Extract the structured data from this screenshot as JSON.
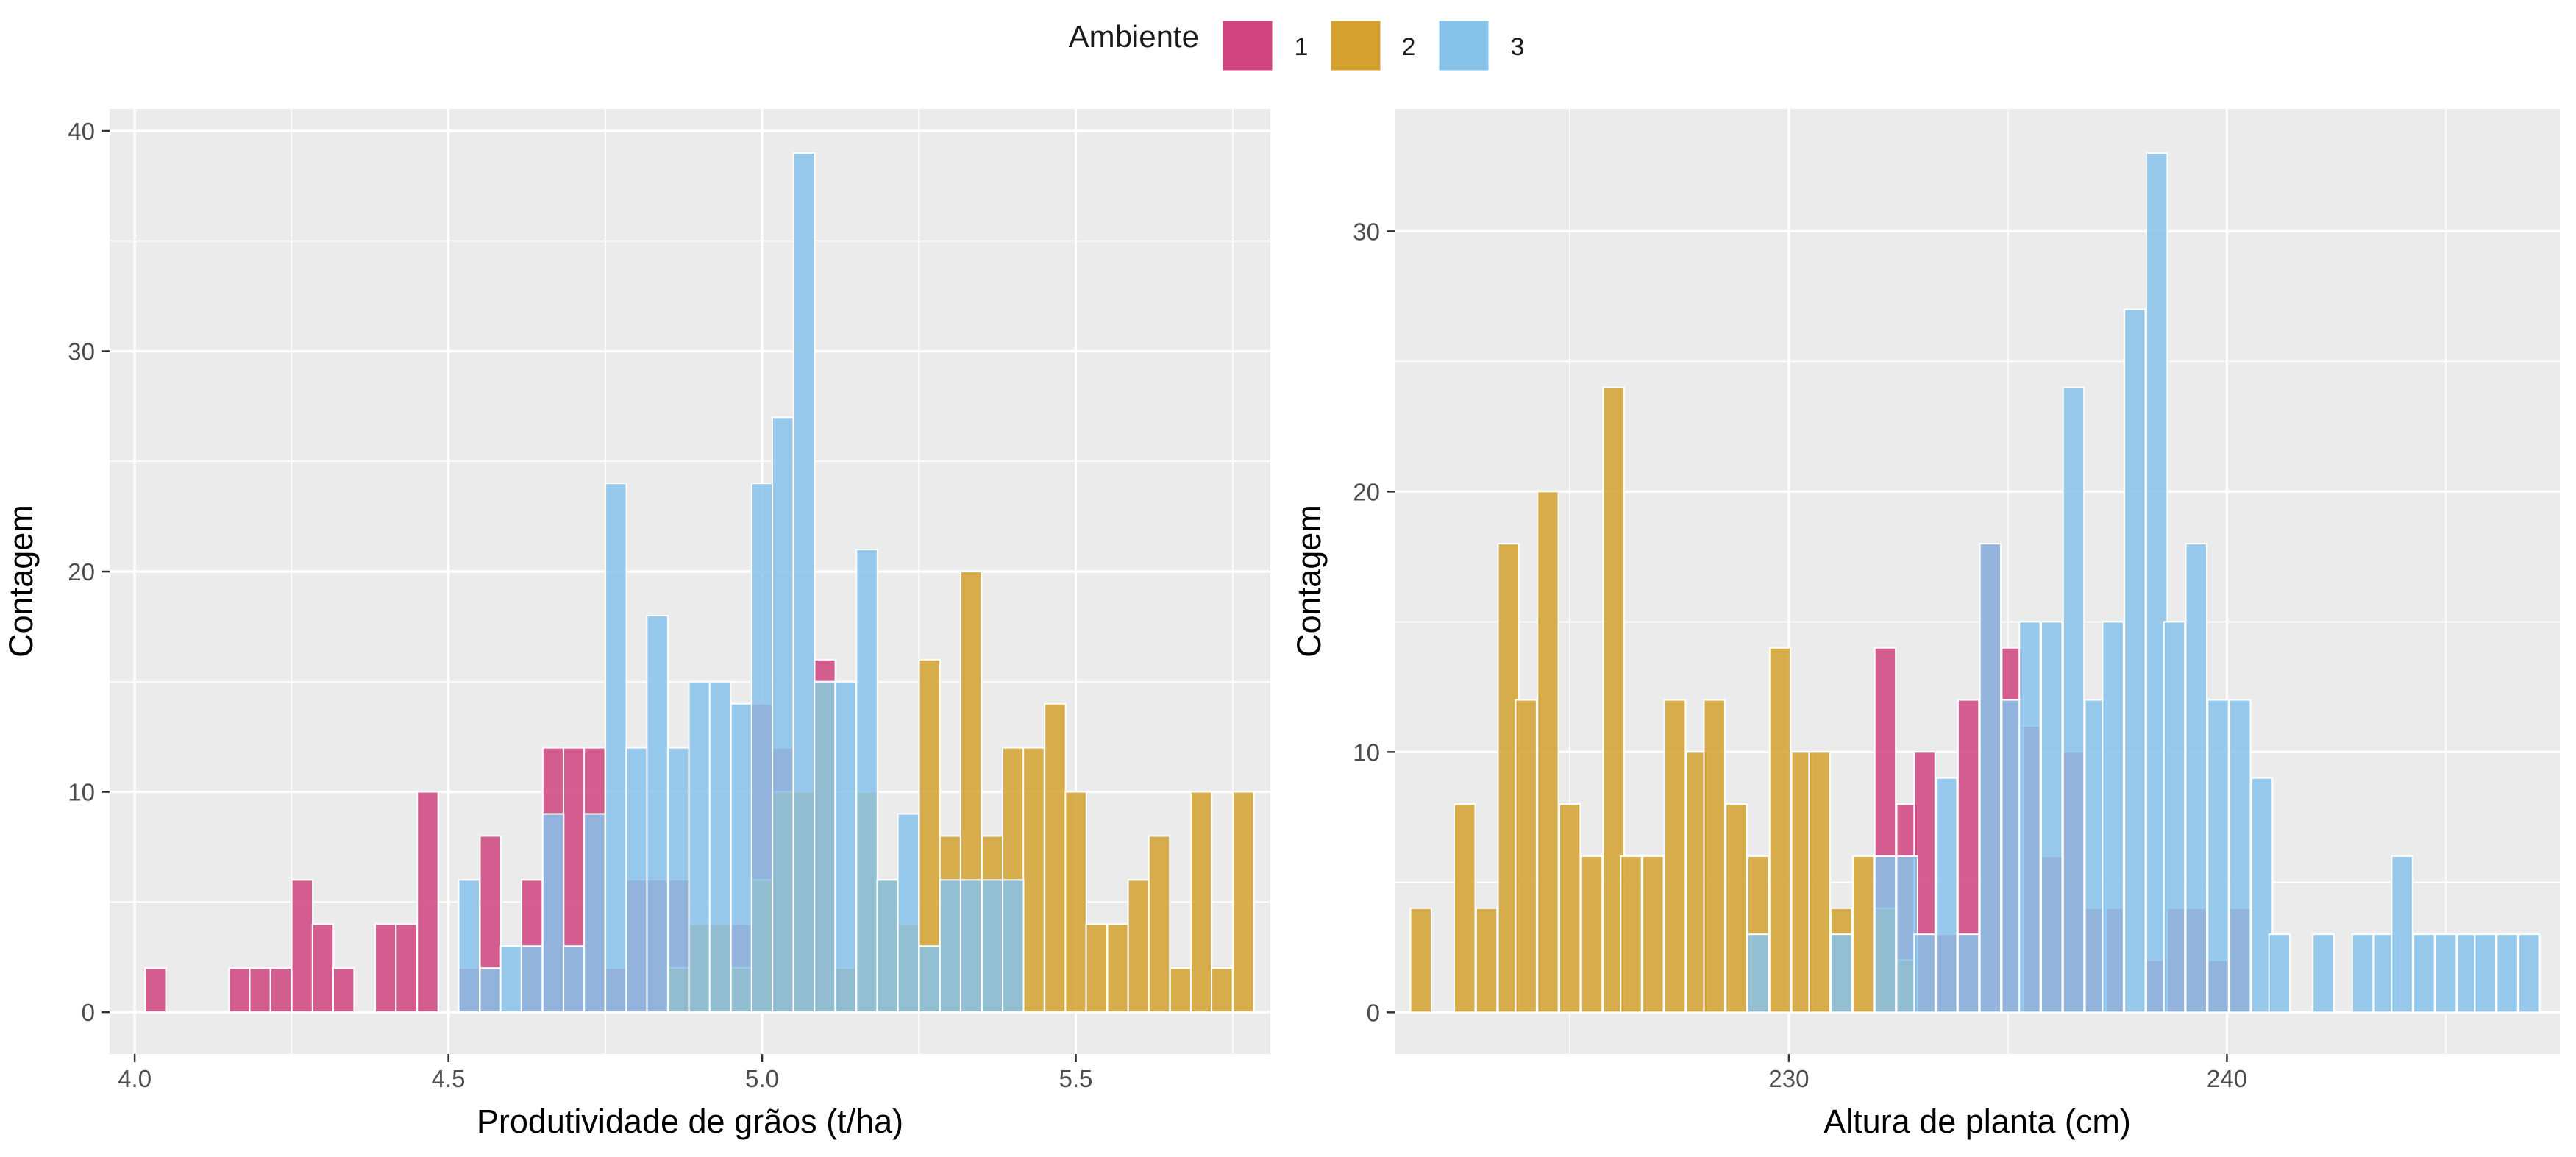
{
  "legend": {
    "title": "Ambiente",
    "items": [
      {
        "label": "1",
        "color": "#D0447F"
      },
      {
        "label": "2",
        "color": "#D4A12F"
      },
      {
        "label": "3",
        "color": "#86C2EA"
      }
    ]
  },
  "chart_data": [
    {
      "type": "bar",
      "subtype": "overlaid histogram",
      "xlabel": "Produtividade de grãos (t/ha)",
      "ylabel": "Contagem",
      "xlim": [
        3.96,
        5.81
      ],
      "ylim": [
        -1.9,
        41
      ],
      "x_ticks": [
        4.0,
        4.5,
        5.0,
        5.5
      ],
      "x_tick_labels": [
        "4.0",
        "4.5",
        "5.0",
        "5.5"
      ],
      "y_ticks": [
        0,
        10,
        20,
        30,
        40
      ],
      "y_tick_labels": [
        "0",
        "10",
        "20",
        "30",
        "40"
      ],
      "bin_width": 0.0334,
      "grid": true,
      "legend_position": "top",
      "series": [
        {
          "name": "1",
          "color": "#D0447F",
          "x": [
            4.033,
            4.167,
            4.2,
            4.233,
            4.267,
            4.3,
            4.333,
            4.4,
            4.433,
            4.467,
            4.533,
            4.567,
            4.633,
            4.667,
            4.7,
            4.733,
            4.767,
            4.8,
            4.833,
            4.867,
            4.9,
            4.933,
            4.967,
            5.0,
            5.033,
            5.067,
            5.1,
            5.133
          ],
          "values": [
            2,
            2,
            2,
            2,
            6,
            4,
            2,
            4,
            4,
            10,
            2,
            8,
            6,
            12,
            12,
            12,
            2,
            6,
            6,
            6,
            4,
            4,
            4,
            14,
            12,
            10,
            16,
            2
          ]
        },
        {
          "name": "2",
          "color": "#D4A12F",
          "x": [
            4.867,
            4.9,
            4.933,
            4.967,
            5.0,
            5.033,
            5.067,
            5.1,
            5.133,
            5.167,
            5.2,
            5.233,
            5.267,
            5.3,
            5.333,
            5.367,
            5.4,
            5.433,
            5.467,
            5.5,
            5.533,
            5.567,
            5.6,
            5.633,
            5.667,
            5.7,
            5.733,
            5.767
          ],
          "values": [
            2,
            4,
            4,
            2,
            6,
            10,
            10,
            15,
            2,
            10,
            6,
            4,
            16,
            8,
            20,
            8,
            12,
            12,
            14,
            10,
            4,
            4,
            6,
            8,
            2,
            10,
            2,
            10
          ]
        },
        {
          "name": "3",
          "color": "#86C2EA",
          "x": [
            4.533,
            4.567,
            4.6,
            4.633,
            4.667,
            4.7,
            4.733,
            4.767,
            4.8,
            4.833,
            4.867,
            4.9,
            4.933,
            4.967,
            5.0,
            5.033,
            5.067,
            5.1,
            5.133,
            5.167,
            5.2,
            5.233,
            5.267,
            5.3,
            5.333,
            5.367,
            5.4
          ],
          "values": [
            6,
            2,
            3,
            3,
            9,
            3,
            9,
            24,
            12,
            18,
            12,
            15,
            15,
            14,
            24,
            27,
            39,
            15,
            15,
            21,
            6,
            9,
            3,
            6,
            6,
            6,
            6
          ]
        }
      ]
    },
    {
      "type": "bar",
      "subtype": "overlaid histogram",
      "xlabel": "Altura de planta (cm)",
      "ylabel": "Contagem",
      "xlim": [
        221.0,
        247.6
      ],
      "ylim": [
        -1.6,
        34.7
      ],
      "x_ticks": [
        230,
        240
      ],
      "x_tick_labels": [
        "230",
        "240"
      ],
      "y_ticks": [
        0,
        10,
        20,
        30
      ],
      "y_tick_labels": [
        "0",
        "10",
        "20",
        "30"
      ],
      "bin_width": 0.478,
      "grid": true,
      "legend_position": "top",
      "series": [
        {
          "name": "1",
          "color": "#D0447F",
          "x": [
            232.2,
            232.7,
            233.1,
            233.6,
            234.1,
            234.6,
            235.1,
            235.5,
            236.0,
            236.5,
            237.0,
            237.4,
            238.4,
            238.8,
            239.3,
            239.8,
            240.3
          ],
          "values": [
            14,
            8,
            10,
            3,
            12,
            18,
            14,
            11,
            6,
            10,
            4,
            4,
            2,
            4,
            4,
            2,
            4
          ]
        },
        {
          "name": "2",
          "color": "#D4A12F",
          "x": [
            221.6,
            222.6,
            223.1,
            223.6,
            224.0,
            224.5,
            225.0,
            225.5,
            226.0,
            226.4,
            226.9,
            227.4,
            227.9,
            228.3,
            228.8,
            229.3,
            229.8,
            230.3,
            230.7,
            231.2,
            231.7,
            232.2,
            232.7
          ],
          "values": [
            4,
            8,
            4,
            18,
            12,
            20,
            8,
            6,
            24,
            6,
            6,
            12,
            10,
            12,
            8,
            6,
            14,
            10,
            10,
            4,
            6,
            4,
            2
          ]
        },
        {
          "name": "3",
          "color": "#86C2EA",
          "x": [
            229.3,
            231.2,
            232.2,
            232.7,
            233.1,
            233.6,
            234.1,
            234.6,
            235.1,
            235.5,
            236.0,
            236.5,
            237.0,
            237.4,
            237.9,
            238.4,
            238.8,
            239.3,
            239.8,
            240.3,
            240.8,
            241.2,
            242.2,
            243.1,
            243.6,
            244.0,
            244.5,
            245.0,
            245.5,
            245.9,
            246.4,
            246.9
          ],
          "values": [
            3,
            3,
            6,
            6,
            3,
            9,
            3,
            18,
            12,
            15,
            15,
            24,
            12,
            15,
            27,
            33,
            15,
            18,
            12,
            12,
            9,
            3,
            3,
            3,
            3,
            6,
            3,
            3,
            3,
            3,
            3,
            3
          ]
        }
      ]
    }
  ]
}
